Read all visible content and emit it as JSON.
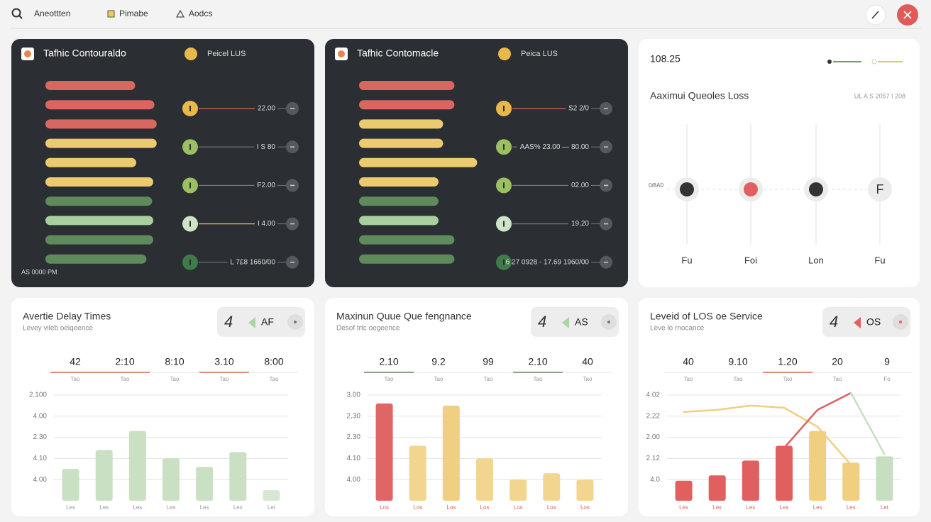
{
  "toolbar": {
    "items": [
      "Aneottten",
      "Pimabe",
      "Aodcs"
    ]
  },
  "traffic_panels": [
    {
      "title": "Tafhic Contouraldo",
      "badge": "Peicel LUS",
      "footer": "AS 0000 PM",
      "bars": [
        {
          "value": 79,
          "color": "#d9675f"
        },
        {
          "value": 96,
          "color": "#d9675f"
        },
        {
          "value": 98,
          "color": "#d9675f"
        },
        {
          "value": 98,
          "color": "#eccb6e"
        },
        {
          "value": 80,
          "color": "#eccb6e"
        },
        {
          "value": 95,
          "color": "#eccb6e"
        },
        {
          "value": 94,
          "color": "#5e8a5c"
        },
        {
          "value": 95,
          "color": "#a9cf9f"
        },
        {
          "value": 95,
          "color": "#5e8a5c"
        },
        {
          "value": 89,
          "color": "#5e8a5c"
        }
      ],
      "rows": [
        {
          "label": "22.00",
          "color": "#e8b84a",
          "line": "#d9675f"
        },
        {
          "label": "I S 80",
          "color": "#9cbf62",
          "line": "#77797e"
        },
        {
          "label": "F2.00",
          "color": "#9cbf62",
          "line": "#77797e"
        },
        {
          "label": "I 4.00",
          "color": "#cfe3c9",
          "line": "#e8c25a"
        },
        {
          "label": "L 7£8 1660/00",
          "color": "#3f7a4a",
          "line": "#77797e"
        }
      ]
    },
    {
      "title": "Tafhic Contomacle",
      "badge": "Peica LUS",
      "bars": [
        {
          "value": 84,
          "color": "#d9675f"
        },
        {
          "value": 84,
          "color": "#d9675f"
        },
        {
          "value": 74,
          "color": "#eccb6e"
        },
        {
          "value": 74,
          "color": "#eccb6e"
        },
        {
          "value": 104,
          "color": "#eccb6e"
        },
        {
          "value": 70,
          "color": "#eccb6e"
        },
        {
          "value": 70,
          "color": "#5e8a5c"
        },
        {
          "value": 70,
          "color": "#a9cf9f"
        },
        {
          "value": 84,
          "color": "#5e8a5c"
        },
        {
          "value": 84,
          "color": "#5e8a5c"
        }
      ],
      "rows": [
        {
          "label": "S2 2/0",
          "color": "#e8b84a",
          "line": "#d9675f"
        },
        {
          "label": "AAS% 23.00 — 80.00",
          "color": "#9cbf62",
          "line": "#77797e"
        },
        {
          "label": "02.00",
          "color": "#9cbf62",
          "line": "#77797e"
        },
        {
          "label": "19.20",
          "color": "#cfe3c9",
          "line": "#77797e"
        },
        {
          "label": "6 27 0928 - 17.69 1960/00",
          "color": "#3f7a4a",
          "line": "#77797e"
        }
      ]
    }
  ],
  "queue_panel": {
    "value": "108.25",
    "title": "Aaximui Queoles Loss",
    "note": "UL A S 2057 I 208",
    "axis_label": "0/8A0",
    "points": [
      {
        "label": "Fu",
        "color": "#333333"
      },
      {
        "label": "Foi",
        "color": "#e06060"
      },
      {
        "label": "Lon",
        "color": "#333333"
      },
      {
        "label": "Fu",
        "text": "F"
      }
    ]
  },
  "chart_panels": [
    {
      "type": "bar",
      "title": "Avertie Delay Times",
      "subtitle": "Levey vileb oeiqeence",
      "control": {
        "icon": "4",
        "label": "AF",
        "color": "#a8d5a0",
        "dot": "#777777"
      },
      "stats": [
        {
          "value": "42",
          "label": "Tao",
          "accent": "#d9675f"
        },
        {
          "value": "2:10",
          "label": "Tao",
          "accent": "#d9675f"
        },
        {
          "value": "8:10",
          "label": "Tao"
        },
        {
          "value": "3.10",
          "label": "Tao",
          "accent": "#d9675f"
        },
        {
          "value": "8:00",
          "label": "Tao"
        }
      ],
      "ylim": [
        0,
        5
      ],
      "yticks": [
        {
          "value": 5,
          "label": "2.100"
        },
        {
          "value": 4,
          "label": "4.00"
        },
        {
          "value": 3,
          "label": "2.30"
        },
        {
          "value": 2,
          "label": "4.10"
        },
        {
          "value": 1,
          "label": "4.00"
        }
      ],
      "categories": [
        "Les",
        "Les",
        "Les",
        "Les",
        "Les",
        "Les",
        "Let"
      ],
      "label_color": "#999999",
      "values": [
        1.5,
        2.4,
        3.3,
        2.0,
        1.6,
        2.3,
        0.5
      ],
      "colors": [
        "#c9e0c2",
        "#c9e0c2",
        "#c9e0c2",
        "#c9e0c2",
        "#c9e0c2",
        "#c9e0c2",
        "#d6e8d1"
      ]
    },
    {
      "type": "bar",
      "title": "Maxinun Quue Que fengnance",
      "subtitle": "Desof trtc oegeence",
      "control": {
        "icon": "4",
        "label": "AS",
        "color": "#a8d5a0",
        "dot": "#777777"
      },
      "stats": [
        {
          "value": "2.10",
          "label": "Tao",
          "accent": "#5e8a5c"
        },
        {
          "value": "9.2",
          "label": "Tao"
        },
        {
          "value": "99",
          "label": "Tao"
        },
        {
          "value": "2.10",
          "label": "Tao",
          "accent": "#5e8a5c"
        },
        {
          "value": "40",
          "label": "Tao"
        }
      ],
      "ylim": [
        0,
        5
      ],
      "yticks": [
        {
          "value": 5,
          "label": "3.00"
        },
        {
          "value": 4,
          "label": "2.30"
        },
        {
          "value": 3,
          "label": "2.30"
        },
        {
          "value": 2,
          "label": "4.10"
        },
        {
          "value": 1,
          "label": "4.00"
        }
      ],
      "categories": [
        "Los",
        "Los",
        "Los",
        "Los",
        "Los",
        "Los",
        "Los"
      ],
      "label_color": "#d9675f",
      "values": [
        4.6,
        2.6,
        4.5,
        2.0,
        1.0,
        1.3,
        1.0
      ],
      "colors": [
        "#e06666",
        "#f2d690",
        "#f0d080",
        "#f2d690",
        "#f2d690",
        "#f2d690",
        "#f2d690"
      ]
    },
    {
      "type": "bar",
      "title": "Leveid of LOS oe Service",
      "subtitle": "Leve lo rnocance",
      "control": {
        "icon": "4",
        "label": "OS",
        "color": "#e06060",
        "dot": "#e06060"
      },
      "stats": [
        {
          "value": "40",
          "label": "Tao"
        },
        {
          "value": "9.10",
          "label": "Tao"
        },
        {
          "value": "1.20",
          "label": "Tao",
          "accent": "#d9675f"
        },
        {
          "value": "20",
          "label": "Tao"
        },
        {
          "value": "9",
          "label": "Fo"
        }
      ],
      "ylim": [
        0,
        5
      ],
      "yticks": [
        {
          "value": 5,
          "label": "4.02"
        },
        {
          "value": 4,
          "label": "2.22"
        },
        {
          "value": 3,
          "label": "2.00"
        },
        {
          "value": 2,
          "label": "2.12"
        },
        {
          "value": 1,
          "label": "4.0"
        }
      ],
      "categories": [
        "Les",
        "Les",
        "Les",
        "Les",
        "Les",
        "Les",
        "Let"
      ],
      "label_color": "#d9675f",
      "values": [
        0.95,
        1.2,
        1.9,
        2.6,
        3.3,
        1.8,
        2.1
      ],
      "colors": [
        "#e06060",
        "#e06060",
        "#e06060",
        "#e06060",
        "#f0d080",
        "#f0d080",
        "#c5dfc0"
      ],
      "series": [
        {
          "color": "#f0d080",
          "values": [
            4.2,
            4.3,
            4.5,
            4.4,
            3.5,
            1.7,
            null
          ]
        },
        {
          "color": "#e06060",
          "values": [
            null,
            null,
            null,
            2.5,
            4.3,
            5.1,
            null
          ]
        },
        {
          "color": "#c5dfc0",
          "values": [
            null,
            null,
            null,
            null,
            null,
            5.1,
            2.2
          ]
        }
      ]
    }
  ]
}
